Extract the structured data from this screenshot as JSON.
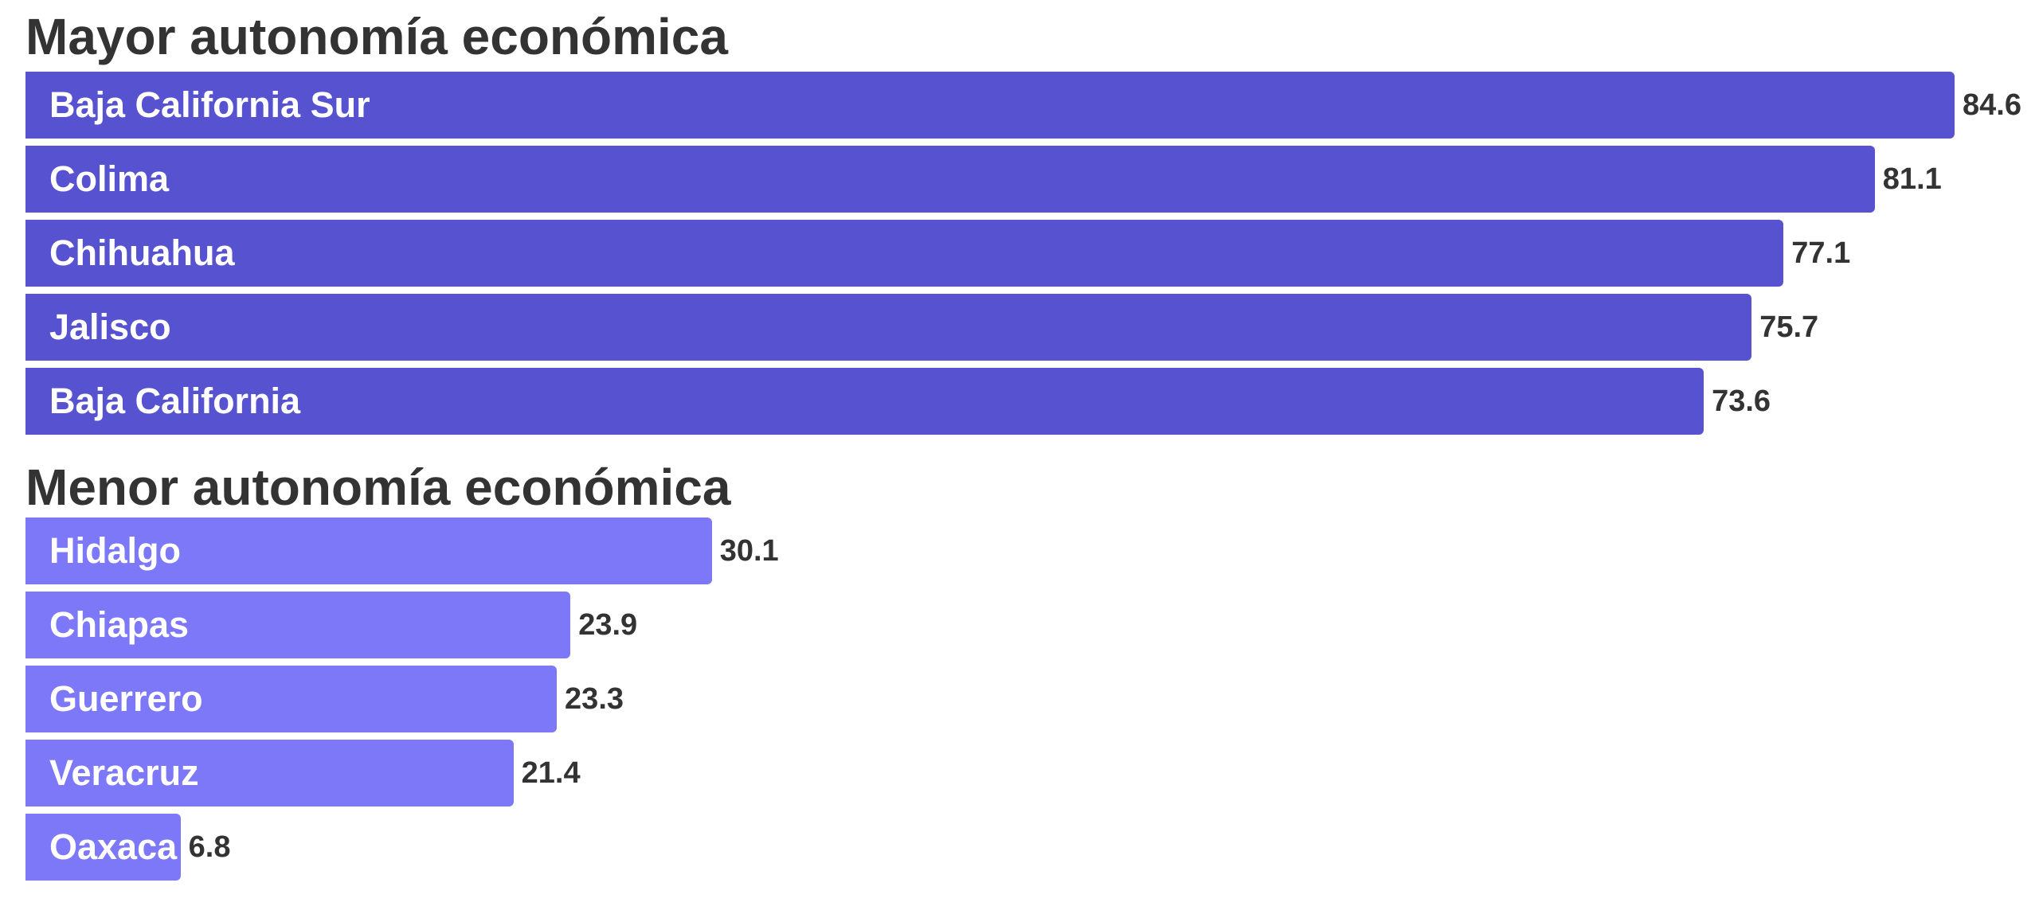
{
  "chart_data": [
    {
      "type": "bar",
      "orientation": "horizontal",
      "title": "Mayor autonomía económica",
      "categories": [
        "Baja California Sur",
        "Colima",
        "Chihuahua",
        "Jalisco",
        "Baja California"
      ],
      "values": [
        84.6,
        81.1,
        77.1,
        75.7,
        73.6
      ],
      "value_labels": [
        "84.6",
        "81.1",
        "77.1",
        "75.7",
        "73.6"
      ],
      "color": "#5753d0",
      "xlim": [
        0,
        84.6
      ],
      "grid": false
    },
    {
      "type": "bar",
      "orientation": "horizontal",
      "title": "Menor autonomía económica",
      "categories": [
        "Hidalgo",
        "Chiapas",
        "Guerrero",
        "Veracruz",
        "Oaxaca"
      ],
      "values": [
        30.1,
        23.9,
        23.3,
        21.4,
        6.8
      ],
      "value_labels": [
        "30.1",
        "23.9",
        "23.3",
        "21.4",
        "6.8"
      ],
      "color": "#7c78f8",
      "xlim": [
        0,
        84.6
      ],
      "grid": false
    }
  ]
}
